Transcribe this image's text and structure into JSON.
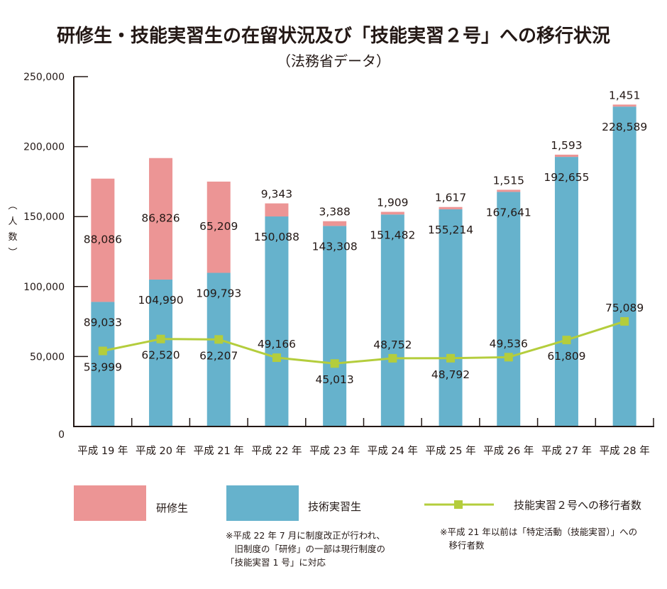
{
  "chart_data": {
    "type": "bar",
    "stacked": true,
    "title": "研修生・技能実習生の在留状況及び「技能実習２号」への移行状況",
    "subtitle": "（法務省データ）",
    "xlabel": "",
    "ylabel": "（人数）",
    "ylabel_chars": [
      "︵",
      "人",
      "数",
      "︶"
    ],
    "ylim": [
      0,
      250000
    ],
    "yticks": [
      0,
      50000,
      100000,
      150000,
      200000,
      250000
    ],
    "ytick_labels": [
      "0",
      "50,000",
      "100,000",
      "150,000",
      "200,000",
      "250,000"
    ],
    "grid": false,
    "categories": [
      "平成 19 年",
      "平成 20 年",
      "平成 21 年",
      "平成 22 年",
      "平成 23 年",
      "平成 24 年",
      "平成 25 年",
      "平成 26 年",
      "平成 27 年",
      "平成 28 年"
    ],
    "series": [
      {
        "name": "技術実習生",
        "type": "bar",
        "color": "#66b2cc",
        "values": [
          89033,
          104990,
          109793,
          150088,
          143308,
          151482,
          155214,
          167641,
          192655,
          228589
        ],
        "labels": [
          "89,033",
          "104,990",
          "109,793",
          "150,088",
          "143,308",
          "151,482",
          "155,214",
          "167,641",
          "192,655",
          "228,589"
        ]
      },
      {
        "name": "研修生",
        "type": "bar",
        "color": "#ec9595",
        "values": [
          88086,
          86826,
          65209,
          9343,
          3388,
          1909,
          1617,
          1515,
          1593,
          1451
        ],
        "labels": [
          "88,086",
          "86,826",
          "65,209",
          "9,343",
          "3,388",
          "1,909",
          "1,617",
          "1,515",
          "1,593",
          "1,451"
        ]
      },
      {
        "name": "技能実習２号への移行者数",
        "type": "line",
        "color": "#b4cd3c",
        "values": [
          53999,
          62520,
          62207,
          49166,
          45013,
          48752,
          48792,
          49536,
          61809,
          75089
        ],
        "labels": [
          "53,999",
          "62,520",
          "62,207",
          "49,166",
          "45,013",
          "48,752",
          "48,792",
          "49,536",
          "61,809",
          "75,089"
        ],
        "label_position": [
          "below",
          "below",
          "below",
          "above",
          "below",
          "above",
          "below",
          "above",
          "below",
          "above"
        ]
      }
    ],
    "legend": {
      "placement": "bottom",
      "items": [
        {
          "label": "研修生",
          "color": "#ec9595",
          "kind": "box"
        },
        {
          "label": "技術実習生",
          "color": "#66b2cc",
          "kind": "box"
        },
        {
          "label": "技能実習２号への移行者数",
          "color": "#b4cd3c",
          "kind": "line"
        }
      ]
    },
    "notes": [
      "※平成 22 年 7 月に制度改正が行われ、\n　旧制度の「研修」の一部は現行制度の\n「技能実習 1 号」に対応",
      "※平成 21 年以前は「特定活動（技能実習）」への\n　移行者数"
    ]
  }
}
